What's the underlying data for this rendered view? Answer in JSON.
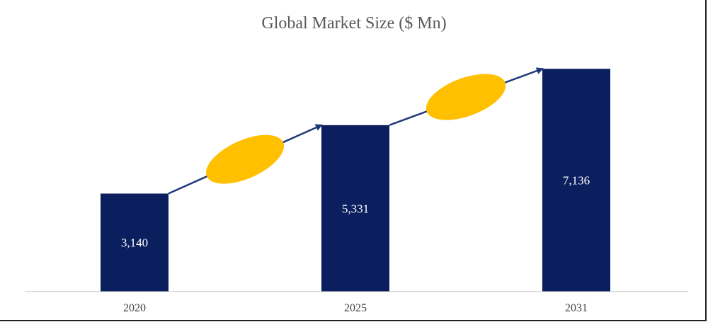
{
  "chart_data": {
    "type": "bar",
    "title": "Global Market Size ($ Mn)",
    "categories": [
      "2020",
      "2025",
      "2031"
    ],
    "values": [
      3140,
      5331,
      7136
    ],
    "data_labels": [
      "3,140",
      "5,331",
      "7,136"
    ],
    "xlabel": "",
    "ylabel": "",
    "ylim": [
      0,
      7300
    ],
    "grid": false,
    "legend": "none",
    "colors": {
      "bar": "#0b1f5e",
      "ellipse": "#ffc000",
      "arrow": "#1f3a78",
      "axis": "#bfbfbf"
    }
  }
}
